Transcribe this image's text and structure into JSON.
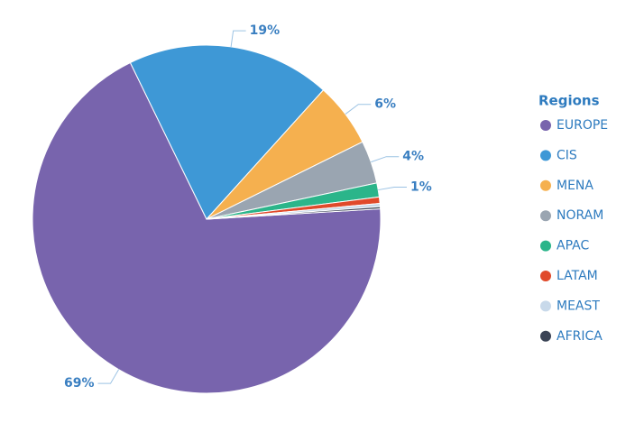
{
  "chart_data": {
    "type": "pie",
    "legend_title": "Regions",
    "legend": "right",
    "categories": [
      "EUROPE",
      "CIS",
      "MENA",
      "NORAM",
      "APAC",
      "LATAM",
      "MEAST",
      "AFRICA"
    ],
    "values": [
      69,
      19,
      6,
      4,
      1.3,
      0.6,
      0.3,
      0.2
    ],
    "value_labels": [
      "69%",
      "19%",
      "6%",
      "4%",
      "1%",
      null,
      null,
      null
    ],
    "colors": [
      "#7864ad",
      "#3e98d6",
      "#f5b04f",
      "#9aa5b1",
      "#2bb58a",
      "#e04a2b",
      "#c8d9ea",
      "#3b4456"
    ]
  }
}
